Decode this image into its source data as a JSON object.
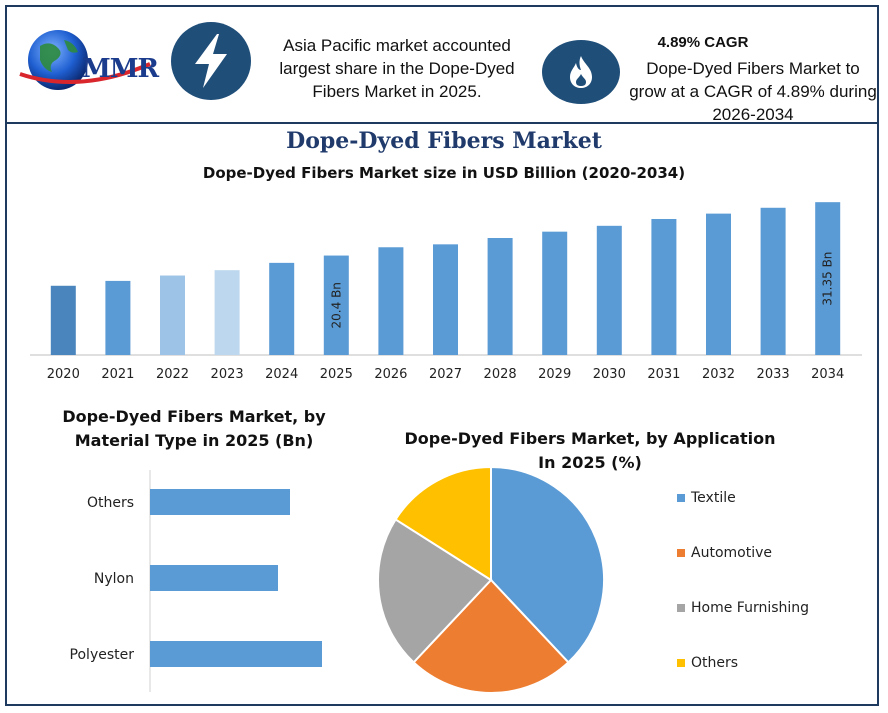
{
  "header": {
    "logo_text": "MMR",
    "fact1_lines": [
      "Asia Pacific market accounted",
      "largest share in the Dope-Dyed",
      "Fibers Market in 2025."
    ],
    "fact2_title": "4.89% CAGR",
    "fact2_lines": [
      "Dope-Dyed Fibers Market to",
      "grow at a CAGR of 4.89% during",
      "2026-2034"
    ],
    "icons": [
      "lightning-icon",
      "flame-icon",
      "globe-icon"
    ]
  },
  "main_title": "Dope-Dyed Fibers Market",
  "chart_data": [
    {
      "type": "bar",
      "title": "Dope-Dyed Fibers Market size in USD Billion (2020-2034)",
      "categories": [
        "2020",
        "2021",
        "2022",
        "2023",
        "2024",
        "2025",
        "2026",
        "2027",
        "2028",
        "2029",
        "2030",
        "2031",
        "2032",
        "2033",
        "2034"
      ],
      "values": [
        14.2,
        15.2,
        16.3,
        17.4,
        18.9,
        20.4,
        22.1,
        22.7,
        24.0,
        25.3,
        26.5,
        27.9,
        29.0,
        30.2,
        31.35
      ],
      "bar_colors": [
        "#4a86bd",
        "#5b9bd5",
        "#9dc3e6",
        "#bdd7ee",
        "#5b9bd5",
        "#5b9bd5",
        "#5b9bd5",
        "#5b9bd5",
        "#5b9bd5",
        "#5b9bd5",
        "#5b9bd5",
        "#5b9bd5",
        "#5b9bd5",
        "#5b9bd5",
        "#5b9bd5"
      ],
      "data_labels": [
        {
          "category": "2025",
          "text": "20.4 Bn"
        },
        {
          "category": "2034",
          "text": "31.35 Bn"
        }
      ],
      "ylim": [
        0,
        32
      ],
      "axis_color": "#bfbfbf",
      "grid": false
    },
    {
      "type": "bar",
      "orientation": "horizontal",
      "title_lines": [
        "Dope-Dyed Fibers Market, by",
        "Material Type in 2025 (Bn)"
      ],
      "categories": [
        "Others",
        "Nylon",
        "Polyester"
      ],
      "values": [
        14.0,
        12.8,
        17.2
      ],
      "xlim": [
        0,
        20
      ],
      "color": "#5b9bd5"
    },
    {
      "type": "pie",
      "title_lines": [
        "Dope-Dyed Fibers Market, by Application",
        "In 2025 (%)"
      ],
      "labels": [
        "Textile",
        "Automotive",
        "Home Furnishing",
        "Others"
      ],
      "values": [
        38,
        24,
        22,
        16
      ],
      "colors": [
        "#5b9bd5",
        "#ed7d31",
        "#a5a5a5",
        "#ffc000"
      ],
      "legend_position": "right"
    }
  ]
}
